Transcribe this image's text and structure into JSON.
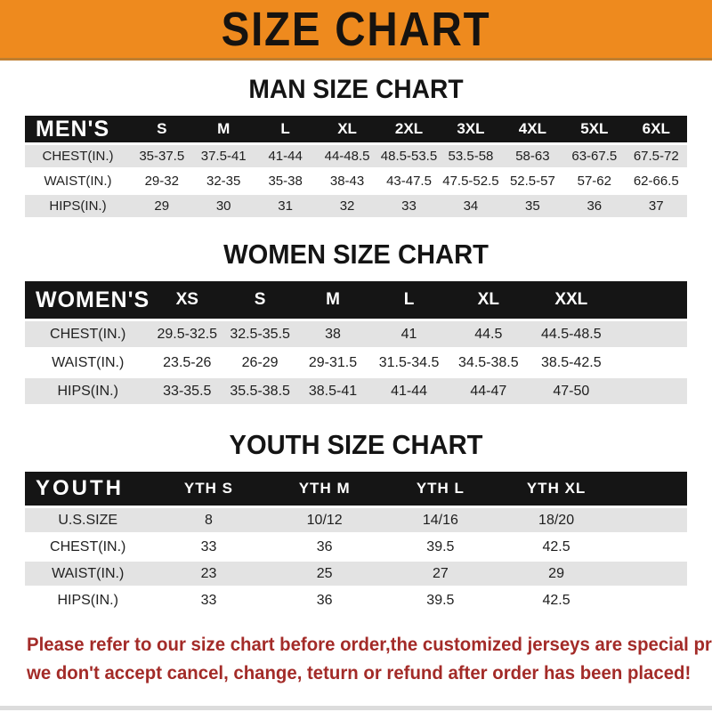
{
  "banner": {
    "title": "SIZE CHART"
  },
  "colors": {
    "banner_orange": "#ee8a1e",
    "table_header_black": "#151515",
    "row_gray": "#e3e3e3",
    "note_red": "#a32b28"
  },
  "tables": {
    "men": {
      "heading": "MAN SIZE CHART",
      "header_label": "MEN'S",
      "columns": [
        "S",
        "M",
        "L",
        "XL",
        "2XL",
        "3XL",
        "4XL",
        "5XL",
        "6XL"
      ],
      "rows": [
        {
          "label": "CHEST(IN.)",
          "values": [
            "35-37.5",
            "37.5-41",
            "41-44",
            "44-48.5",
            "48.5-53.5",
            "53.5-58",
            "58-63",
            "63-67.5",
            "67.5-72"
          ]
        },
        {
          "label": "WAIST(IN.)",
          "values": [
            "29-32",
            "32-35",
            "35-38",
            "38-43",
            "43-47.5",
            "47.5-52.5",
            "52.5-57",
            "57-62",
            "62-66.5"
          ]
        },
        {
          "label": "HIPS(IN.)",
          "values": [
            "29",
            "30",
            "31",
            "32",
            "33",
            "34",
            "35",
            "36",
            "37"
          ]
        }
      ]
    },
    "women": {
      "heading": "WOMEN SIZE CHART",
      "header_label": "WOMEN'S",
      "columns": [
        "XS",
        "S",
        "M",
        "L",
        "XL",
        "XXL"
      ],
      "filler": true,
      "rows": [
        {
          "label": "CHEST(IN.)",
          "values": [
            "29.5-32.5",
            "32.5-35.5",
            "38",
            "41",
            "44.5",
            "44.5-48.5"
          ]
        },
        {
          "label": "WAIST(IN.)",
          "values": [
            "23.5-26",
            "26-29",
            "29-31.5",
            "31.5-34.5",
            "34.5-38.5",
            "38.5-42.5"
          ]
        },
        {
          "label": "HIPS(IN.)",
          "values": [
            "33-35.5",
            "35.5-38.5",
            "38.5-41",
            "41-44",
            "44-47",
            "47-50"
          ]
        }
      ]
    },
    "youth": {
      "heading": "YOUTH SIZE CHART",
      "header_label": "YOUTH",
      "columns": [
        "YTH S",
        "YTH M",
        "YTH L",
        "YTH XL"
      ],
      "filler": true,
      "rows": [
        {
          "label": "U.S.SIZE",
          "values": [
            "8",
            "10/12",
            "14/16",
            "18/20"
          ]
        },
        {
          "label": "CHEST(IN.)",
          "values": [
            "33",
            "36",
            "39.5",
            "42.5"
          ]
        },
        {
          "label": "WAIST(IN.)",
          "values": [
            "23",
            "25",
            "27",
            "29"
          ]
        },
        {
          "label": "HIPS(IN.)",
          "values": [
            "33",
            "36",
            "39.5",
            "42.5"
          ]
        }
      ]
    }
  },
  "note": {
    "line1": "Please refer to our size chart before order,the customized jerseys are special products,",
    "line2": "we don't accept cancel, change, teturn or refund after order has been placed!"
  }
}
